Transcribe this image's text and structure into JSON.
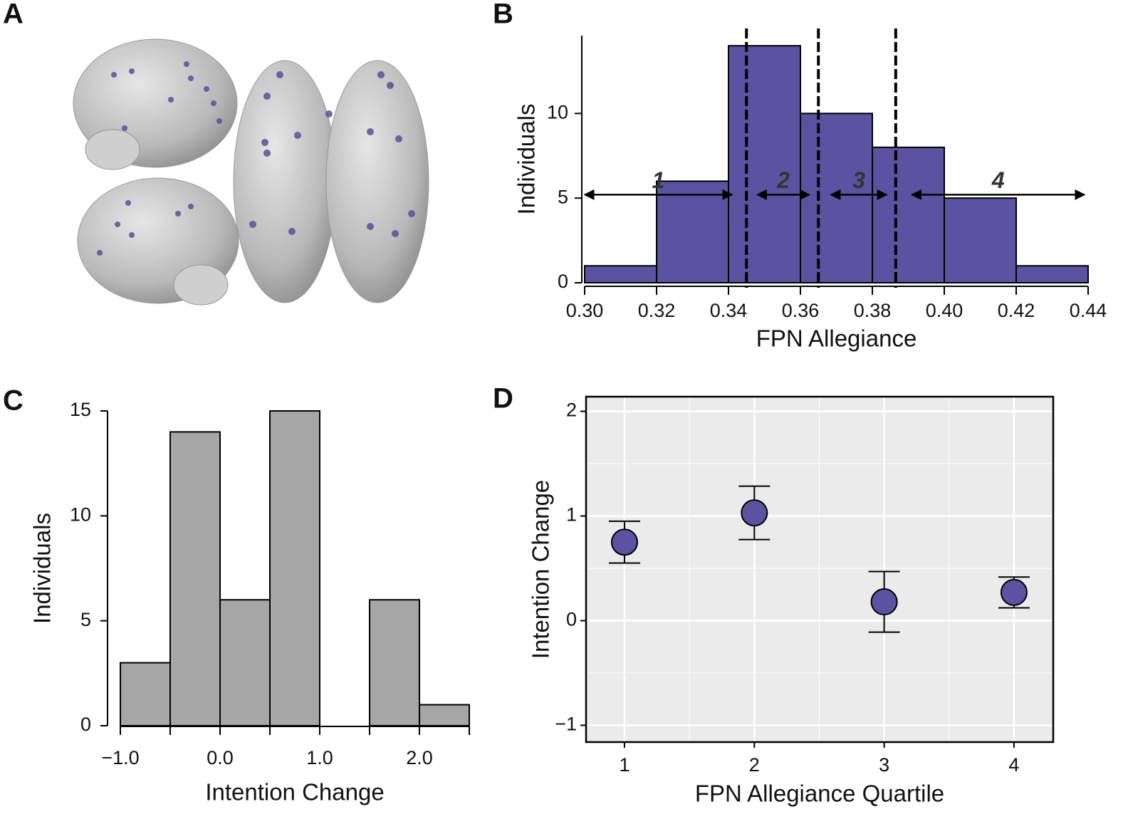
{
  "panel_a_label": "A",
  "chart_data": [
    {
      "type": "histogram",
      "panel_label": "B",
      "xlabel": "FPN Allegiance",
      "ylabel": "Individuals",
      "bins": [
        0.3,
        0.32,
        0.34,
        0.36,
        0.38,
        0.4,
        0.42,
        0.44
      ],
      "values": [
        1,
        6,
        14,
        10,
        8,
        5,
        1
      ],
      "color": "#5b53a1",
      "xlim": [
        0.3,
        0.44
      ],
      "ylim": [
        0,
        14.6
      ],
      "xticks": [
        {
          "value": 0.3,
          "label": "0.30"
        },
        0.32,
        0.34,
        0.36,
        0.38,
        {
          "value": 0.4,
          "label": "0.40"
        },
        0.42,
        0.44
      ],
      "yticks": [
        0,
        5,
        10
      ],
      "vlines": [
        0.345,
        0.365,
        0.3865
      ],
      "annotations": [
        {
          "text": "1",
          "x_start": 0.3,
          "x_end": 0.341,
          "y": 5.2
        },
        {
          "text": "2",
          "x_start": 0.348,
          "x_end": 0.3625,
          "y": 5.2
        },
        {
          "text": "3",
          "x_start": 0.3685,
          "x_end": 0.384,
          "y": 5.2
        },
        {
          "text": "4",
          "x_start": 0.391,
          "x_end": 0.439,
          "y": 5.2
        }
      ]
    },
    {
      "type": "histogram",
      "panel_label": "C",
      "xlabel": "Intention Change",
      "ylabel": "Individuals",
      "bins": [
        -1.0,
        -0.5,
        0.0,
        0.5,
        1.0,
        1.5,
        2.0,
        2.5
      ],
      "values": [
        3,
        14,
        6,
        15,
        0,
        6,
        1
      ],
      "color": "#a6a6a6",
      "xlim": [
        -1.0,
        2.5
      ],
      "ylim": [
        0,
        15
      ],
      "xticks": [
        {
          "value": -1.0,
          "label": "−1.0"
        },
        {
          "value": 0.0,
          "label": "0.0"
        },
        {
          "value": 1.0,
          "label": "1.0"
        },
        {
          "value": 2.0,
          "label": "2.0"
        }
      ],
      "xminorticks": [
        -0.5,
        0.5,
        1.5,
        2.5
      ],
      "yticks": [
        0,
        5,
        10,
        15
      ]
    },
    {
      "type": "errorbar",
      "panel_label": "D",
      "xlabel": "FPN Allegiance Quartile",
      "ylabel": "Intention Change",
      "x": [
        1,
        2,
        3,
        4
      ],
      "values": [
        0.75,
        1.03,
        0.18,
        0.27
      ],
      "errors": [
        0.2,
        0.255,
        0.29,
        0.147
      ],
      "color": "#5b53a1",
      "background": "#ebebeb",
      "grid": true,
      "xlim": [
        0.704,
        4.302
      ],
      "ylim": [
        -1.16,
        2.14
      ],
      "xticks": [
        1,
        2,
        3,
        4
      ],
      "yticks": [
        {
          "value": -1,
          "label": "−1"
        },
        0,
        1,
        2
      ],
      "minor_xgrid": [
        1.5,
        2.5,
        3.5
      ],
      "minor_ygrid": [
        -0.5,
        0.5,
        1.5
      ]
    }
  ]
}
